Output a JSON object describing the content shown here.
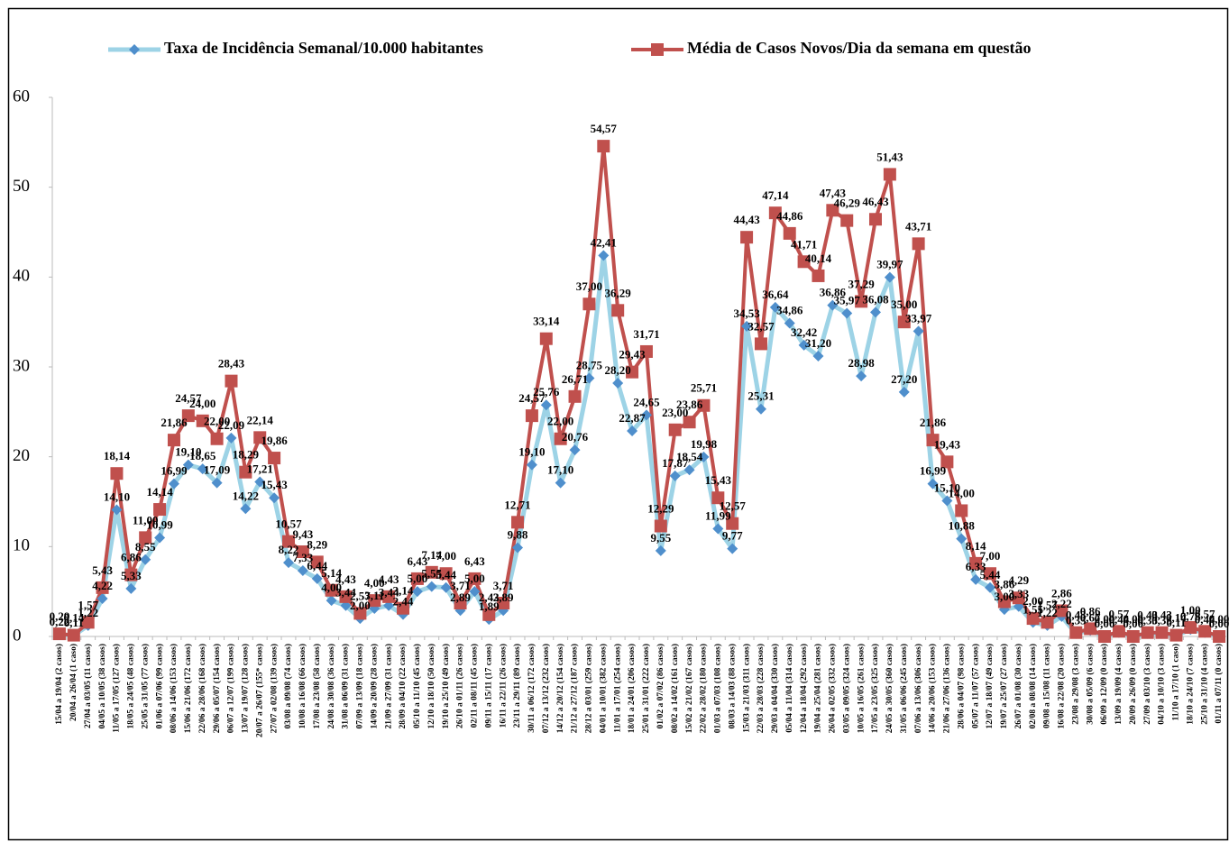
{
  "chart_data": {
    "type": "line",
    "categories": [
      "15/04 a 19/04 (2 casos)",
      "20/04 a 26/04 (1 caso)",
      "27/04 a 03/05 (11 casos)",
      "04/05 a 10/05 (38 casos)",
      "11/05 a 17/05 (127 casos)",
      "18/05 a 24/05 (48 casos)",
      "25/05 a 31/05 (77 casos)",
      "01/06 a 07/06 (99 casos)",
      "08/06 a 14/06 (153 casos)",
      "15/06 a 21/06 (172 casos)",
      "22/06 a 28/06 (168 casos)",
      "29/06 a 05/07 (154 casos)",
      "06/07 a 12/07 (199 casos)",
      "13/07 a 19/07 (128 casos)",
      "20/07 a 26/07 (155* casos)",
      "27/07 a 02/08 (139 casos)",
      "03/08 a 09/08 (74 casos)",
      "10/08 a 16/08 (66 casos)",
      "17/08 a 23/08 (58 casos)",
      "24/08 a 30/08 (36 casos)",
      "31/08 a 06/09 (31 casos)",
      "07/09 a 13/09 (18 casos)",
      "14/09 a 20/09 (28 casos)",
      "21/09 a 27/09 (31 casos)",
      "28/09 a 04/10 (22 casos)",
      "05/10 a 11/10 (45 casos)",
      "12/10 a 18/10 (50 casos)",
      "19/10 a 25/10 (49 casos)",
      "26/10 a 01/11 (26 casos)",
      "02/11 a 08/11 (45 casos)",
      "09/11 a 15/11 (17 casos)",
      "16/11 a 22/11 (26 casos)",
      "23/11 a 29/11 (89 casos)",
      "30/11 a 06/12 (172 casos)",
      "07/12 a 13/12 (232 casos)",
      "14/12 a 20/12 (154 casos)",
      "21/12 a 27/12 (187 casos)",
      "28/12 a 03/01 (259 casos)",
      "04/01 a 10/01 (382 casos)",
      "11/01 a 17/01 (254 casos)",
      "18/01 a 24/01 (206 casos)",
      "25/01 a 31/01 (222 casos)",
      "01/02 a 07/02 (86 casos)",
      "08/02 a 14/02 (161 casos)",
      "15/02 a 21/02 (167 casos)",
      "22/02 a 28/02 (180 casos)",
      "01/03 a 07/03 (108 casos)",
      "08/03 a 14/03 (88 casos)",
      "15/03 a 21/03 (311 casos)",
      "22/03 a 28/03 (228 casos)",
      "29/03 a 04/04 (330 casos)",
      "05/04 a 11/04 (314 casos)",
      "12/04 a 18/04 (292 casos)",
      "19/04 a 25/04 (281 casos)",
      "26/04 a 02/05 (332 casos)",
      "03/05 a 09/05 (324 casos)",
      "10/05 a 16/05 (261 casos)",
      "17/05 a 23/05 (325 casos)",
      "24/05 a 30/05 (360 casos)",
      "31/05 a 06/06 (245 casos)",
      "07/06 a 13/06 (306 casos)",
      "14/06 a 20/06 (153 casos)",
      "21/06 a 27/06 (136 casos)",
      "28/06 a 04/07 (98 casos)",
      "05/07 a 11/07 (57 casos)",
      "12/07 a 18/07 (49 casos)",
      "19/07 a 25/07 (27 casos)",
      "26/07 a 01/08 (30 casos)",
      "02/08 a 08/08 (14 casos)",
      "09/08 a 15/08 (11 casos)",
      "16/08 a 22/08 (20 casos)",
      "23/08 a 29/08 (3 casos)",
      "30/08 a 05/09 (6 casos)",
      "06/09 a 12/09 (0 casos)",
      "13/09 a 19/09 (4 casos)",
      "20/09 a 26/09 (0 casos)",
      "27/09 a 03/10 (3 casos)",
      "04/10 a 10/10 (3 casos)",
      "11/10 a 17/10 (1 caso)",
      "18/10 a 24/10 (7 casos)",
      "25/10 a 31/10 (4 casos)",
      "01/11 a 07/11 (0 casos)"
    ],
    "series": [
      {
        "name": "Taxa de Incidência Semanal/10.000 habitantes",
        "color": "#4f8fcc",
        "line_color": "#9dd3e6",
        "marker": "diamond",
        "values": [
          0.22,
          0.11,
          1.22,
          4.22,
          14.1,
          5.33,
          8.55,
          10.99,
          16.99,
          19.1,
          18.65,
          17.09,
          22.09,
          14.22,
          17.21,
          15.43,
          8.22,
          7.33,
          6.44,
          4.0,
          3.44,
          2.0,
          3.11,
          3.44,
          2.44,
          5.0,
          5.55,
          5.44,
          2.89,
          5.0,
          1.89,
          2.89,
          9.88,
          19.1,
          25.76,
          17.1,
          20.76,
          28.75,
          42.41,
          28.2,
          22.87,
          24.65,
          9.55,
          17.87,
          18.54,
          19.98,
          11.99,
          9.77,
          34.53,
          25.31,
          36.64,
          34.86,
          32.42,
          31.2,
          36.86,
          35.97,
          28.98,
          36.08,
          39.97,
          27.2,
          33.97,
          16.99,
          15.1,
          10.88,
          6.33,
          5.44,
          3.0,
          3.33,
          1.55,
          1.22,
          2.22,
          0.33,
          0.67,
          0,
          0.44,
          0,
          0.33,
          0.33,
          0.11,
          0.78,
          0.44,
          0
        ],
        "value_labels": [
          "0,22",
          "0,11",
          "1,22",
          "4,22",
          "14,10",
          "5,33",
          "8,55",
          "10,99",
          "16,99",
          "19,10",
          "18,65",
          "17,09",
          "22,09",
          "14,22",
          "17,21",
          "15,43",
          "8,22",
          "7,33",
          "6,44",
          "4,00",
          "3,44",
          "2,00",
          "3,11",
          "3,44",
          "2,44",
          "5,00",
          "5,55",
          "5,44",
          "2,89",
          "5,00",
          "1,89",
          "2,89",
          "9,88",
          "19,10",
          "25,76",
          "17,10",
          "20,76",
          "28,75",
          "42,41",
          "28,20",
          "22,87",
          "24,65",
          "9,55",
          "17,87",
          "18,54",
          "19,98",
          "11,99",
          "9,77",
          "34,53",
          "25,31",
          "36,64",
          "34,86",
          "32,42",
          "31,20",
          "36,86",
          "35,97",
          "28,98",
          "36,08",
          "39,97",
          "27,20",
          "33,97",
          "16,99",
          "15,10",
          "10,88",
          "6,33",
          "5,44",
          "3,00",
          "3,33",
          "1,55",
          "1,22",
          "2,22",
          "0,33",
          "0,67",
          "0,00",
          "0,44",
          "0,00",
          "0,33",
          "0,33",
          "0,11",
          "0,78",
          "0,44",
          "0,00"
        ]
      },
      {
        "name": "Média de Casos Novos/Dia da semana em questão",
        "color": "#c0504d",
        "line_color": "#c0504d",
        "marker": "square",
        "values": [
          0.29,
          0.14,
          1.57,
          5.43,
          18.14,
          6.86,
          11.0,
          14.14,
          21.86,
          24.57,
          24.0,
          22.0,
          28.43,
          18.29,
          22.14,
          19.86,
          10.57,
          9.43,
          8.29,
          5.14,
          4.43,
          2.57,
          4.0,
          4.43,
          3.14,
          6.43,
          7.14,
          7.0,
          3.71,
          6.43,
          2.43,
          3.71,
          12.71,
          24.57,
          33.14,
          22.0,
          26.71,
          37.0,
          54.57,
          36.29,
          29.43,
          31.71,
          12.29,
          23.0,
          23.86,
          25.71,
          15.43,
          12.57,
          44.43,
          32.57,
          47.14,
          44.86,
          41.71,
          40.14,
          47.43,
          46.29,
          37.29,
          46.43,
          51.43,
          35.0,
          43.71,
          21.86,
          19.43,
          14.0,
          8.14,
          7.0,
          3.86,
          4.29,
          2.0,
          1.57,
          2.86,
          0.43,
          0.86,
          0,
          0.57,
          0,
          0.43,
          0.43,
          0.14,
          1.0,
          0.57,
          0
        ],
        "value_labels": [
          "0,29",
          "0,14",
          "1,57",
          "5,43",
          "18,14",
          "6,86",
          "11,00",
          "14,14",
          "21,86",
          "24,57",
          "24,00",
          "22,00",
          "28,43",
          "18,29",
          "22,14",
          "19,86",
          "10,57",
          "9,43",
          "8,29",
          "5,14",
          "4,43",
          "2,57",
          "4,00",
          "4,43",
          "3,14",
          "6,43",
          "7,14",
          "7,00",
          "3,71",
          "6,43",
          "2,43",
          "3,71",
          "12,71",
          "24,57",
          "33,14",
          "22,00",
          "26,71",
          "37,00",
          "54,57",
          "36,29",
          "29,43",
          "31,71",
          "12,29",
          "23,00",
          "23,86",
          "25,71",
          "15,43",
          "12,57",
          "44,43",
          "32,57",
          "47,14",
          "44,86",
          "41,71",
          "40,14",
          "47,43",
          "46,29",
          "37,29",
          "46,43",
          "51,43",
          "35,00",
          "43,71",
          "21,86",
          "19,43",
          "14,00",
          "8,14",
          "7,00",
          "3,86",
          "4,29",
          "2,00",
          "1,57",
          "2,86",
          "0,43",
          "0,86",
          "0,00",
          "0,57",
          "0,00",
          "0,43",
          "0,43",
          "0,14",
          "1,00",
          "0,57",
          "0,00"
        ]
      }
    ],
    "ylim": [
      0,
      60
    ],
    "yticks": [
      0,
      10,
      20,
      30,
      40,
      50,
      60
    ],
    "grid": false,
    "legend": "top"
  }
}
